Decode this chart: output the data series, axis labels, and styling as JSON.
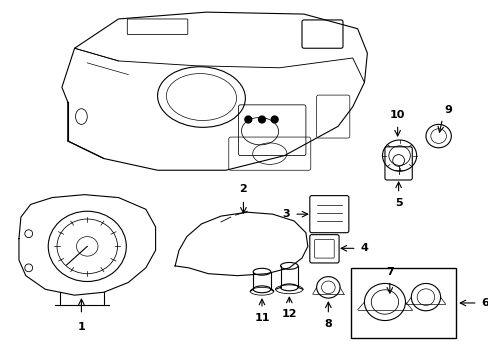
{
  "background_color": "#ffffff",
  "line_color": "#000000",
  "lw": 0.8,
  "fig_w": 4.89,
  "fig_h": 3.6,
  "dpi": 100
}
